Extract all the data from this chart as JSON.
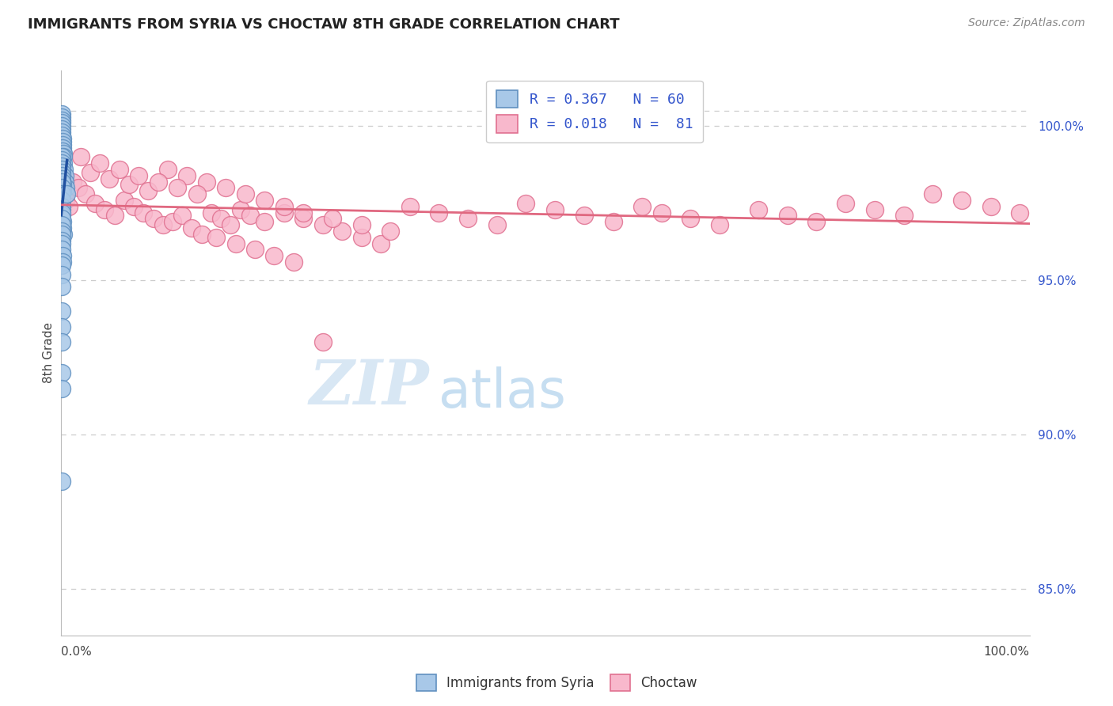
{
  "title": "IMMIGRANTS FROM SYRIA VS CHOCTAW 8TH GRADE CORRELATION CHART",
  "source": "Source: ZipAtlas.com",
  "ylabel": "8th Grade",
  "xlim": [
    0,
    100
  ],
  "ylim": [
    83.5,
    101.8
  ],
  "right_yticks": [
    85.0,
    90.0,
    95.0,
    100.0
  ],
  "right_yticklabels": [
    "85.0%",
    "90.0%",
    "95.0%",
    "100.0%"
  ],
  "top_grid_y": 100.5,
  "blue_color": "#A8C8E8",
  "blue_edge": "#6090C0",
  "blue_line_color": "#2050A0",
  "pink_color": "#F8B8CC",
  "pink_edge": "#E07090",
  "pink_line_color": "#E06880",
  "legend_blue_label": "R = 0.367   N = 60",
  "legend_pink_label": "R = 0.018   N =  81",
  "watermark_zip": "ZIP",
  "watermark_atlas": "atlas",
  "blue_x": [
    0.02,
    0.03,
    0.04,
    0.05,
    0.06,
    0.07,
    0.08,
    0.09,
    0.1,
    0.11,
    0.12,
    0.13,
    0.15,
    0.18,
    0.2,
    0.25,
    0.3,
    0.35,
    0.4,
    0.5,
    0.02,
    0.03,
    0.04,
    0.05,
    0.06,
    0.07,
    0.08,
    0.09,
    0.1,
    0.12,
    0.02,
    0.03,
    0.04,
    0.05,
    0.06,
    0.07,
    0.08,
    0.1,
    0.15,
    0.2,
    0.02,
    0.03,
    0.04,
    0.05,
    0.06,
    0.07,
    0.08,
    0.09,
    0.1,
    0.11,
    0.02,
    0.03,
    0.04,
    0.05,
    0.06,
    0.07,
    0.08,
    0.09,
    0.02,
    0.55
  ],
  "blue_y": [
    100.4,
    100.3,
    100.2,
    100.1,
    100.0,
    99.9,
    99.8,
    99.7,
    99.6,
    99.5,
    99.4,
    99.3,
    99.2,
    99.1,
    99.0,
    98.8,
    98.6,
    98.4,
    98.2,
    98.0,
    99.0,
    98.9,
    98.8,
    98.7,
    98.6,
    98.5,
    98.4,
    98.3,
    98.1,
    97.9,
    98.2,
    98.0,
    97.8,
    97.6,
    97.4,
    97.3,
    97.1,
    96.9,
    96.7,
    96.5,
    97.2,
    97.0,
    96.8,
    96.6,
    96.5,
    96.3,
    96.2,
    96.0,
    95.8,
    95.6,
    95.5,
    95.2,
    94.8,
    94.0,
    93.5,
    93.0,
    92.0,
    91.5,
    88.5,
    97.8
  ],
  "pink_x": [
    0.15,
    0.3,
    0.5,
    0.8,
    1.2,
    1.8,
    2.5,
    3.5,
    4.5,
    5.5,
    6.5,
    7.5,
    8.5,
    9.5,
    10.5,
    11.5,
    12.5,
    13.5,
    14.5,
    15.5,
    16.5,
    17.5,
    18.5,
    19.5,
    21.0,
    23.0,
    25.0,
    27.0,
    29.0,
    31.0,
    33.0,
    36.0,
    39.0,
    42.0,
    45.0,
    48.0,
    51.0,
    54.0,
    57.0,
    60.0,
    62.0,
    65.0,
    68.0,
    72.0,
    75.0,
    78.0,
    81.0,
    84.0,
    87.0,
    90.0,
    93.0,
    96.0,
    99.0,
    3.0,
    5.0,
    7.0,
    9.0,
    11.0,
    13.0,
    15.0,
    17.0,
    19.0,
    21.0,
    23.0,
    25.0,
    28.0,
    31.0,
    34.0,
    2.0,
    4.0,
    6.0,
    8.0,
    10.0,
    12.0,
    14.0,
    16.0,
    18.0,
    20.0,
    22.0,
    24.0,
    27.0
  ],
  "pink_y": [
    98.0,
    97.8,
    97.6,
    97.4,
    98.2,
    98.0,
    97.8,
    97.5,
    97.3,
    97.1,
    97.6,
    97.4,
    97.2,
    97.0,
    96.8,
    96.9,
    97.1,
    96.7,
    96.5,
    97.2,
    97.0,
    96.8,
    97.3,
    97.1,
    96.9,
    97.2,
    97.0,
    96.8,
    96.6,
    96.4,
    96.2,
    97.4,
    97.2,
    97.0,
    96.8,
    97.5,
    97.3,
    97.1,
    96.9,
    97.4,
    97.2,
    97.0,
    96.8,
    97.3,
    97.1,
    96.9,
    97.5,
    97.3,
    97.1,
    97.8,
    97.6,
    97.4,
    97.2,
    98.5,
    98.3,
    98.1,
    97.9,
    98.6,
    98.4,
    98.2,
    98.0,
    97.8,
    97.6,
    97.4,
    97.2,
    97.0,
    96.8,
    96.6,
    99.0,
    98.8,
    98.6,
    98.4,
    98.2,
    98.0,
    97.8,
    96.4,
    96.2,
    96.0,
    95.8,
    95.6,
    93.0
  ]
}
